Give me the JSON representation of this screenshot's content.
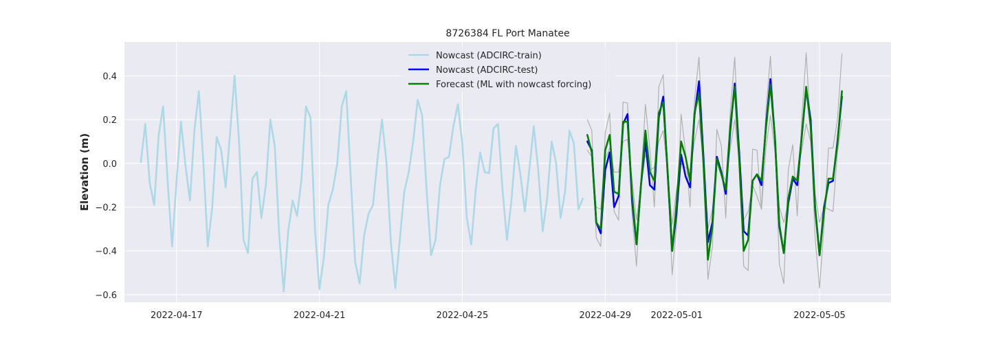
{
  "chart_data": {
    "type": "line",
    "title": "8726384 FL Port Manatee",
    "xlabel": "",
    "ylabel": "Elevation (m)",
    "x_range": [
      "2022-04-15T13:00",
      "2022-05-07T00:00"
    ],
    "ylim": [
      -0.635,
      0.555
    ],
    "y_ticks": [
      -0.6,
      -0.4,
      -0.2,
      0.0,
      0.2,
      0.4
    ],
    "y_tick_labels": [
      "−0.6",
      "−0.4",
      "−0.2",
      "0.0",
      "0.2",
      "0.4"
    ],
    "x_ticks": [
      "2022-04-17",
      "2022-04-21",
      "2022-04-25",
      "2022-04-29",
      "2022-05-01",
      "2022-05-05"
    ],
    "grid": true,
    "legend_position": "upper center",
    "background_color": "#eaeaf2",
    "series": [
      {
        "name": "Nowcast (ADCIRC-train)",
        "color": "#add8e6",
        "width": 2.6,
        "start": "2022-04-16T00:00",
        "step_hours": 3,
        "values": [
          0.005,
          0.18,
          -0.09,
          -0.19,
          0.13,
          0.26,
          -0.08,
          -0.38,
          -0.08,
          0.19,
          -0.01,
          -0.17,
          0.15,
          0.33,
          0.01,
          -0.38,
          -0.2,
          0.12,
          0.06,
          -0.11,
          0.14,
          0.4,
          0.1,
          -0.35,
          -0.41,
          -0.07,
          -0.04,
          -0.25,
          -0.1,
          0.2,
          0.08,
          -0.33,
          -0.585,
          -0.31,
          -0.17,
          -0.24,
          -0.07,
          0.26,
          0.21,
          -0.3,
          -0.575,
          -0.43,
          -0.19,
          -0.12,
          0.0,
          0.26,
          0.33,
          -0.06,
          -0.45,
          -0.55,
          -0.33,
          -0.23,
          -0.19,
          0.02,
          0.2,
          0.01,
          -0.36,
          -0.57,
          -0.35,
          -0.13,
          -0.04,
          0.1,
          0.29,
          0.22,
          -0.12,
          -0.42,
          -0.35,
          -0.1,
          0.02,
          0.03,
          0.17,
          0.27,
          0.09,
          -0.25,
          -0.37,
          -0.12,
          0.05,
          -0.04,
          -0.045,
          0.16,
          0.18,
          -0.12,
          -0.35,
          -0.17,
          0.08,
          -0.05,
          -0.22,
          -0.03,
          0.17,
          -0.03,
          -0.31,
          -0.16,
          0.1,
          0.0,
          -0.25,
          -0.13,
          0.15,
          0.09,
          -0.21,
          -0.16
        ]
      },
      {
        "name": "Nowcast (ADCIRC-test)",
        "color": "#0000ff",
        "width": 2.6,
        "start": "2022-04-28T12:00",
        "step_hours": 3,
        "values": [
          0.1,
          0.06,
          -0.27,
          -0.32,
          -0.03,
          0.05,
          -0.2,
          -0.15,
          0.18,
          0.225,
          -0.17,
          -0.37,
          -0.1,
          0.1,
          -0.1,
          -0.12,
          0.21,
          0.305,
          -0.05,
          -0.4,
          -0.22,
          0.04,
          -0.06,
          -0.11,
          0.22,
          0.375,
          0.03,
          -0.36,
          -0.27,
          0.03,
          -0.04,
          -0.14,
          0.15,
          0.365,
          0.05,
          -0.31,
          -0.33,
          -0.08,
          -0.05,
          -0.1,
          0.17,
          0.385,
          0.12,
          -0.29,
          -0.41,
          -0.18,
          -0.07,
          -0.1,
          0.12,
          0.34,
          0.2,
          -0.2,
          -0.42,
          -0.2,
          -0.09,
          -0.08,
          0.1,
          0.305
        ]
      },
      {
        "name": "Forecast (ML with nowcast forcing)",
        "color": "#008000",
        "width": 2.6,
        "start": "2022-04-28T12:00",
        "step_hours": 3,
        "values": [
          0.13,
          0.05,
          -0.27,
          -0.3,
          0.06,
          0.13,
          -0.13,
          -0.14,
          0.19,
          0.19,
          -0.14,
          -0.37,
          -0.1,
          0.15,
          -0.04,
          -0.08,
          0.23,
          0.28,
          -0.04,
          -0.4,
          -0.18,
          0.1,
          0.03,
          -0.08,
          0.23,
          0.32,
          0.0,
          -0.44,
          -0.29,
          0.02,
          -0.05,
          -0.12,
          0.17,
          0.35,
          0.02,
          -0.4,
          -0.35,
          -0.08,
          -0.05,
          -0.08,
          0.16,
          0.36,
          0.12,
          -0.28,
          -0.41,
          -0.16,
          -0.06,
          -0.08,
          0.12,
          0.35,
          0.17,
          -0.21,
          -0.42,
          -0.22,
          -0.07,
          -0.07,
          0.09,
          0.33
        ]
      },
      {
        "name": "",
        "color": "#b0b0b0",
        "width": 1.2,
        "start": "2022-04-28T12:00",
        "step_hours": 3,
        "values": [
          0.2,
          0.15,
          -0.34,
          -0.38,
          0.14,
          0.23,
          -0.22,
          -0.26,
          0.28,
          0.275,
          -0.23,
          -0.47,
          -0.08,
          0.27,
          0.06,
          -0.2,
          0.35,
          0.405,
          -0.05,
          -0.51,
          -0.28,
          0.225,
          0.05,
          -0.2,
          0.29,
          0.485,
          0.05,
          -0.53,
          -0.38,
          0.155,
          0.08,
          -0.25,
          0.24,
          0.485,
          0.06,
          -0.47,
          -0.49,
          0.065,
          0.06,
          -0.21,
          0.24,
          0.49,
          0.12,
          -0.46,
          -0.55,
          -0.03,
          0.085,
          -0.24,
          0.2,
          0.505,
          0.16,
          -0.34,
          -0.57,
          -0.28,
          0.07,
          0.07,
          0.2,
          0.5
        ]
      },
      {
        "name": "",
        "color": "#b0b0b0",
        "width": 1.2,
        "start": "2022-04-28T12:00",
        "step_hours": 3,
        "values": [
          0.06,
          0.03,
          -0.2,
          -0.21,
          0.02,
          0.07,
          -0.04,
          -0.04,
          0.1,
          0.11,
          -0.07,
          -0.26,
          -0.1,
          0.04,
          -0.03,
          -0.02,
          0.1,
          0.15,
          -0.04,
          -0.28,
          -0.12,
          0.0,
          -0.02,
          -0.03,
          0.1,
          0.2,
          0.01,
          -0.3,
          -0.21,
          0.02,
          -0.04,
          -0.08,
          0.07,
          0.2,
          0.01,
          -0.26,
          -0.22,
          -0.1,
          -0.15,
          -0.21,
          0.07,
          0.22,
          0.06,
          -0.2,
          -0.27,
          -0.18,
          -0.08,
          -0.06,
          0.06,
          0.18,
          0.1,
          -0.14,
          -0.27,
          -0.2,
          -0.21,
          -0.22,
          0.05,
          0.2
        ]
      }
    ]
  }
}
